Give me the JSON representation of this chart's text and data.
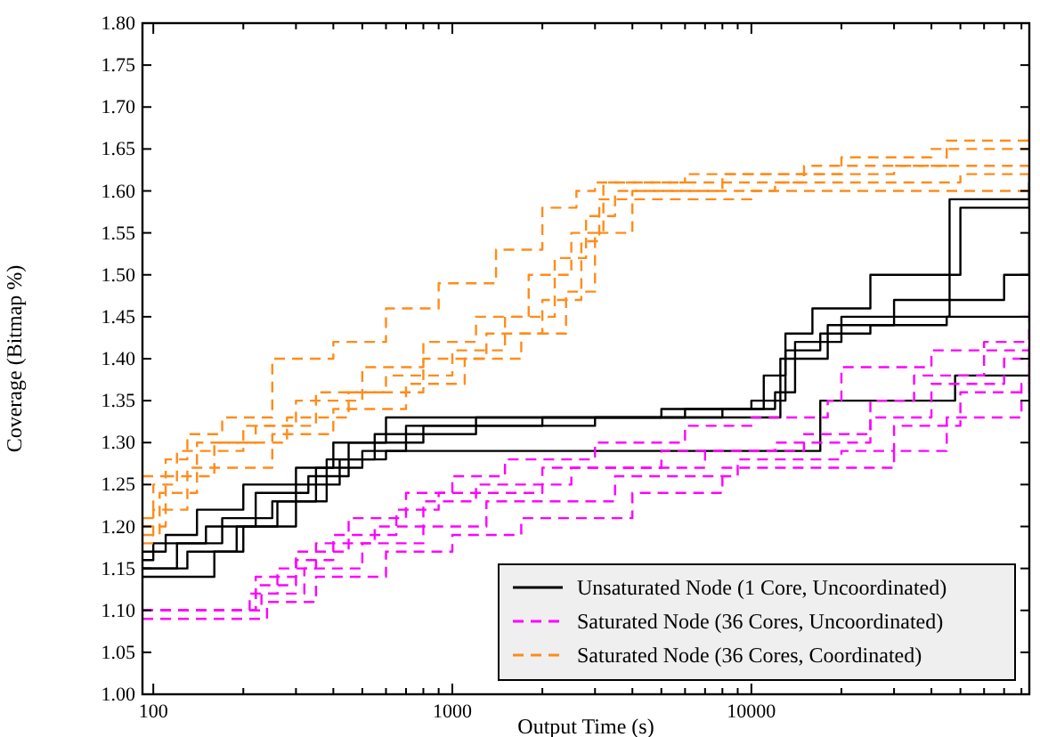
{
  "chart_data": {
    "type": "step",
    "xlabel": "Output Time (s)",
    "ylabel": "Coverage (Bitmap %)",
    "log": "x",
    "grid": false,
    "legend": "bottom right",
    "xlim": [
      92,
      85000
    ],
    "ylim": [
      1,
      1.8
    ],
    "xticks": [
      100,
      {
        "value": 200,
        "label": null
      },
      {
        "value": 300,
        "label": null
      },
      {
        "value": 400,
        "label": null
      },
      {
        "value": 500,
        "label": null
      },
      {
        "value": 600,
        "label": null
      },
      {
        "value": 700,
        "label": null
      },
      {
        "value": 800,
        "label": null
      },
      {
        "value": 900,
        "label": null
      },
      1000,
      {
        "value": 2000,
        "label": null
      },
      {
        "value": 3000,
        "label": null
      },
      {
        "value": 4000,
        "label": null
      },
      {
        "value": 5000,
        "label": null
      },
      {
        "value": 6000,
        "label": null
      },
      {
        "value": 7000,
        "label": null
      },
      {
        "value": 8000,
        "label": null
      },
      {
        "value": 9000,
        "label": null
      },
      10000,
      {
        "value": 20000,
        "label": null
      },
      {
        "value": 30000,
        "label": null
      },
      {
        "value": 40000,
        "label": null
      },
      {
        "value": 50000,
        "label": null
      },
      {
        "value": 60000,
        "label": null
      },
      {
        "value": 70000,
        "label": null
      },
      {
        "value": 80000,
        "label": null
      }
    ],
    "yticks": [
      {
        "value": 1,
        "label": "1.00"
      },
      {
        "value": 1.05,
        "label": "1.05"
      },
      {
        "value": 1.1,
        "label": "1.10"
      },
      {
        "value": 1.15,
        "label": "1.15"
      },
      {
        "value": 1.2,
        "label": "1.20"
      },
      {
        "value": 1.25,
        "label": "1.25"
      },
      {
        "value": 1.3,
        "label": "1.30"
      },
      {
        "value": 1.35,
        "label": "1.35"
      },
      {
        "value": 1.4,
        "label": "1.40"
      },
      {
        "value": 1.45,
        "label": "1.45"
      },
      {
        "value": 1.5,
        "label": "1.50"
      },
      {
        "value": 1.55,
        "label": "1.55"
      },
      {
        "value": 1.6,
        "label": "1.60"
      },
      {
        "value": 1.65,
        "label": "1.65"
      },
      {
        "value": 1.7,
        "label": "1.70"
      },
      {
        "value": 1.75,
        "label": "1.75"
      },
      {
        "value": 1.8,
        "label": "1.80"
      }
    ],
    "series": [
      {
        "name": "Unsaturated Node (1 Core, Uncoordinated)",
        "color": "#000000",
        "line_style": "solid",
        "x": [
          92,
          110,
          140,
          200,
          300,
          400,
          600,
          1000,
          5000,
          11000,
          13000,
          16000,
          25000,
          45000,
          50000,
          85000
        ],
        "values": [
          1.17,
          1.19,
          1.22,
          1.25,
          1.27,
          1.3,
          1.33,
          1.33,
          1.34,
          1.38,
          1.43,
          1.46,
          1.5,
          1.5,
          1.58,
          1.62
        ]
      },
      {
        "color": "#000000",
        "line_style": "solid",
        "x": [
          92,
          120,
          170,
          250,
          350,
          500,
          700,
          2000,
          8000,
          12000,
          14000,
          20000,
          40000,
          46000,
          85000
        ],
        "values": [
          1.15,
          1.18,
          1.21,
          1.23,
          1.27,
          1.29,
          1.32,
          1.33,
          1.34,
          1.36,
          1.42,
          1.45,
          1.45,
          1.59,
          1.61
        ]
      },
      {
        "color": "#000000",
        "line_style": "solid",
        "x": [
          92,
          100,
          150,
          220,
          330,
          450,
          800,
          3000,
          9000,
          12500,
          18000,
          30000,
          70000,
          85000
        ],
        "values": [
          1.16,
          1.18,
          1.2,
          1.24,
          1.26,
          1.3,
          1.32,
          1.33,
          1.33,
          1.4,
          1.44,
          1.47,
          1.5,
          1.55
        ]
      },
      {
        "color": "#000000",
        "line_style": "solid",
        "x": [
          92,
          130,
          190,
          260,
          380,
          550,
          1200,
          6000,
          10000,
          13000,
          17000,
          25000,
          45000,
          85000
        ],
        "values": [
          1.15,
          1.17,
          1.2,
          1.23,
          1.28,
          1.31,
          1.33,
          1.34,
          1.35,
          1.41,
          1.43,
          1.44,
          1.45,
          1.45
        ]
      },
      {
        "color": "#000000",
        "line_style": "solid",
        "x": [
          92,
          140,
          160,
          200,
          300,
          420,
          600,
          9000,
          17000,
          48000,
          85000
        ],
        "values": [
          1.14,
          1.14,
          1.17,
          1.2,
          1.25,
          1.28,
          1.29,
          1.29,
          1.35,
          1.38,
          1.38
        ]
      },
      {
        "name": "Saturated Node (36 Cores, Uncoordinated)",
        "color": "#ff00ff",
        "line_style": "dashed",
        "x": [
          92,
          200,
          220,
          300,
          450,
          700,
          1000,
          1500,
          3000,
          6000,
          10000,
          18000,
          20000,
          40000,
          85000
        ],
        "values": [
          1.1,
          1.1,
          1.14,
          1.17,
          1.21,
          1.24,
          1.26,
          1.28,
          1.3,
          1.32,
          1.33,
          1.35,
          1.39,
          1.41,
          1.46
        ]
      },
      {
        "color": "#ff00ff",
        "line_style": "dashed",
        "x": [
          92,
          210,
          260,
          350,
          550,
          800,
          1200,
          2500,
          7000,
          15000,
          25000,
          35000,
          60000,
          85000
        ],
        "values": [
          1.1,
          1.12,
          1.15,
          1.18,
          1.2,
          1.23,
          1.25,
          1.27,
          1.29,
          1.31,
          1.35,
          1.38,
          1.42,
          1.44
        ]
      },
      {
        "color": "#ff00ff",
        "line_style": "dashed",
        "x": [
          92,
          220,
          300,
          400,
          650,
          900,
          2000,
          5000,
          12000,
          25000,
          40000,
          70000,
          85000
        ],
        "values": [
          1.1,
          1.13,
          1.16,
          1.19,
          1.22,
          1.24,
          1.27,
          1.29,
          1.3,
          1.33,
          1.37,
          1.4,
          1.42
        ]
      },
      {
        "color": "#ff00ff",
        "line_style": "dashed",
        "x": [
          92,
          230,
          320,
          500,
          800,
          1300,
          3500,
          9000,
          20000,
          30000,
          50000,
          85000
        ],
        "values": [
          1.1,
          1.12,
          1.15,
          1.18,
          1.2,
          1.23,
          1.26,
          1.28,
          1.29,
          1.32,
          1.36,
          1.4
        ]
      },
      {
        "color": "#ff00ff",
        "line_style": "dashed",
        "x": [
          92,
          240,
          350,
          600,
          1000,
          1700,
          4000,
          8000,
          30000,
          45000,
          80000,
          85000
        ],
        "values": [
          1.09,
          1.11,
          1.14,
          1.17,
          1.19,
          1.21,
          1.24,
          1.27,
          1.29,
          1.33,
          1.37,
          1.41
        ]
      },
      {
        "name": "Saturated Node (36 Cores, Coordinated)",
        "color": "#ff8c1a",
        "line_style": "dashed",
        "x": [
          92,
          110,
          130,
          170,
          250,
          400,
          600,
          900,
          1400,
          2000,
          2600,
          3000,
          15000,
          45000,
          85000
        ],
        "values": [
          1.26,
          1.28,
          1.31,
          1.33,
          1.4,
          1.42,
          1.46,
          1.49,
          1.53,
          1.58,
          1.6,
          1.61,
          1.63,
          1.66,
          1.66
        ]
      },
      {
        "color": "#ff8c1a",
        "line_style": "dashed",
        "x": [
          92,
          100,
          120,
          200,
          300,
          500,
          800,
          1200,
          1800,
          2500,
          3200,
          6000,
          20000,
          40000,
          85000
        ],
        "values": [
          1.21,
          1.25,
          1.29,
          1.32,
          1.35,
          1.39,
          1.42,
          1.45,
          1.5,
          1.55,
          1.61,
          1.62,
          1.64,
          1.65,
          1.68
        ]
      },
      {
        "color": "#ff8c1a",
        "line_style": "dashed",
        "x": [
          92,
          105,
          140,
          220,
          350,
          600,
          1000,
          1500,
          2200,
          2800,
          3500,
          8000,
          30000,
          85000
        ],
        "values": [
          1.19,
          1.24,
          1.3,
          1.32,
          1.36,
          1.38,
          1.41,
          1.45,
          1.52,
          1.57,
          1.6,
          1.62,
          1.63,
          1.64
        ]
      },
      {
        "color": "#ff8c1a",
        "line_style": "dashed",
        "x": [
          92,
          100,
          130,
          250,
          400,
          700,
          1100,
          1700,
          2400,
          3000,
          4000,
          12000,
          50000,
          85000
        ],
        "values": [
          1.18,
          1.22,
          1.27,
          1.31,
          1.34,
          1.37,
          1.4,
          1.43,
          1.48,
          1.55,
          1.6,
          1.61,
          1.62,
          1.63
        ]
      },
      {
        "color": "#ff8c1a",
        "line_style": "dashed",
        "x": [
          92,
          110,
          160,
          280,
          450,
          800,
          1300,
          2000,
          2700,
          3100,
          10000,
          85000
        ],
        "values": [
          1.2,
          1.26,
          1.3,
          1.33,
          1.36,
          1.4,
          1.43,
          1.47,
          1.54,
          1.59,
          1.6,
          1.61
        ]
      }
    ]
  }
}
